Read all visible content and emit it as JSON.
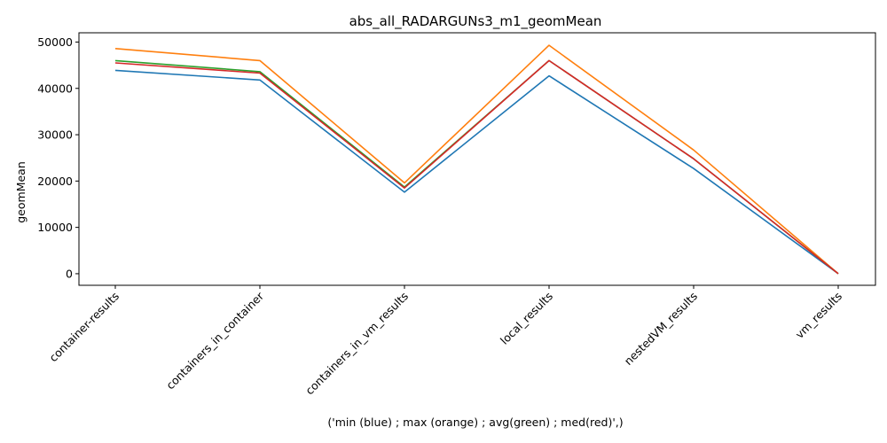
{
  "chart_data": {
    "type": "line",
    "title": "abs_all_RADARGUNs3_m1_geomMean",
    "xlabel": "('min (blue) ; max (orange) ; avg(green) ; med(red)',)",
    "ylabel": "geomMean",
    "categories": [
      "container-results",
      "containers_in_container",
      "containers_in_vm_results",
      "local_results",
      "nestedVM_results",
      "vm_results"
    ],
    "ylim": [
      -2500,
      52000
    ],
    "yticks": [
      0,
      10000,
      20000,
      30000,
      40000,
      50000
    ],
    "grid": false,
    "series": [
      {
        "color": "#1f77b4",
        "values": [
          43900,
          41800,
          17600,
          42700,
          22700,
          0
        ]
      },
      {
        "color": "#ff7f0e",
        "values": [
          48600,
          46000,
          19600,
          49300,
          26700,
          0
        ]
      },
      {
        "color": "#2ca02c",
        "values": [
          46000,
          43600,
          18700,
          46000,
          24800,
          0
        ]
      },
      {
        "color": "#d62728",
        "values": [
          45500,
          43300,
          18500,
          46000,
          24800,
          0
        ]
      }
    ]
  }
}
